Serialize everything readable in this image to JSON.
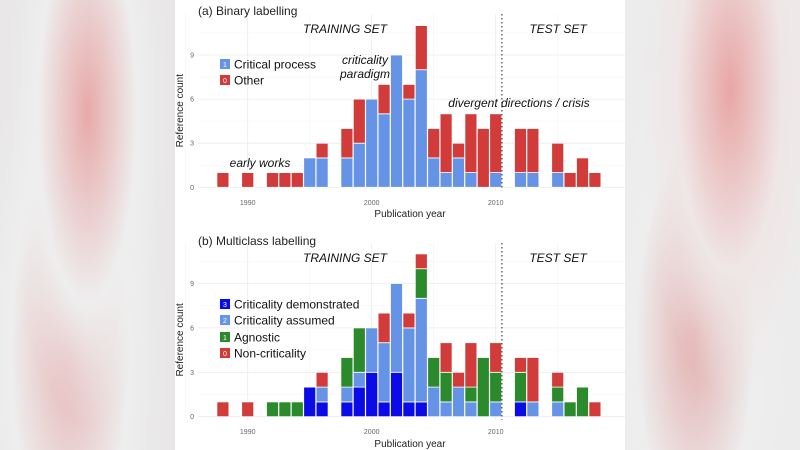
{
  "chart_data": [
    {
      "type": "bar",
      "stacked": true,
      "title": "(a) Binary labelling",
      "xlabel": "Publication year",
      "ylabel": "Reference count",
      "xticks": [
        "1990",
        "2000",
        "2010"
      ],
      "yticks": [
        "0",
        "3",
        "6",
        "9"
      ],
      "ylim": [
        0,
        11
      ],
      "grid": true,
      "legend_position": "top-left",
      "regions": [
        "TRAINING SET",
        "TEST SET"
      ],
      "split_year": 2010.5,
      "annotations": [
        "early works",
        "criticality",
        "paradigm",
        "divergent directions / crisis"
      ],
      "x": [
        1988,
        1990,
        1992,
        1993,
        1994,
        1995,
        1996,
        1998,
        1999,
        2000,
        2001,
        2002,
        2003,
        2004,
        2005,
        2006,
        2007,
        2008,
        2009,
        2010,
        2012,
        2013,
        2015,
        2016,
        2017,
        2018
      ],
      "series": [
        {
          "name": "Critical process",
          "code": "1",
          "color": "#6593e6",
          "values": [
            0,
            0,
            0,
            0,
            0,
            2,
            2,
            2,
            3,
            6,
            5,
            9,
            6,
            8,
            2,
            1,
            2,
            1,
            0,
            1,
            1,
            1,
            1,
            0,
            0,
            0
          ]
        },
        {
          "name": "Other",
          "code": "0",
          "color": "#d13b39",
          "values": [
            1,
            1,
            1,
            1,
            1,
            0,
            1,
            2,
            3,
            0,
            2,
            0,
            1,
            3,
            2,
            4,
            1,
            4,
            4,
            4,
            3,
            3,
            2,
            1,
            2,
            1
          ]
        }
      ]
    },
    {
      "type": "bar",
      "stacked": true,
      "title": "(b) Multiclass labelling",
      "xlabel": "Publication year",
      "ylabel": "Reference count",
      "xticks": [
        "1990",
        "2000",
        "2010"
      ],
      "yticks": [
        "0",
        "3",
        "6",
        "9"
      ],
      "ylim": [
        0,
        11
      ],
      "grid": true,
      "legend_position": "left",
      "regions": [
        "TRAINING SET",
        "TEST SET"
      ],
      "split_year": 2010.5,
      "x": [
        1988,
        1990,
        1992,
        1993,
        1994,
        1995,
        1996,
        1998,
        1999,
        2000,
        2001,
        2002,
        2003,
        2004,
        2005,
        2006,
        2007,
        2008,
        2009,
        2010,
        2012,
        2013,
        2015,
        2016,
        2017,
        2018
      ],
      "series": [
        {
          "name": "Criticality demonstrated",
          "code": "3",
          "color": "#0b0be8",
          "values": [
            0,
            0,
            0,
            0,
            0,
            2,
            1,
            1,
            2,
            3,
            1,
            3,
            1,
            1,
            0,
            0,
            0,
            0,
            0,
            0,
            1,
            0,
            0,
            0,
            0,
            0
          ]
        },
        {
          "name": "Criticality assumed",
          "code": "2",
          "color": "#6593e6",
          "values": [
            0,
            0,
            0,
            0,
            0,
            0,
            1,
            1,
            1,
            3,
            4,
            6,
            5,
            7,
            2,
            1,
            2,
            1,
            0,
            1,
            0,
            1,
            1,
            0,
            0,
            0
          ]
        },
        {
          "name": "Agnostic",
          "code": "1",
          "color": "#2a8a2c",
          "values": [
            0,
            0,
            1,
            1,
            1,
            0,
            0,
            2,
            3,
            0,
            0,
            0,
            0,
            2,
            2,
            2,
            0,
            1,
            4,
            2,
            2,
            0,
            1,
            1,
            2,
            0
          ]
        },
        {
          "name": "Non-criticality",
          "code": "0",
          "color": "#d13b39",
          "values": [
            1,
            1,
            0,
            0,
            0,
            0,
            1,
            0,
            0,
            0,
            2,
            0,
            1,
            1,
            0,
            2,
            1,
            3,
            0,
            2,
            1,
            3,
            1,
            0,
            0,
            1
          ]
        }
      ]
    }
  ]
}
